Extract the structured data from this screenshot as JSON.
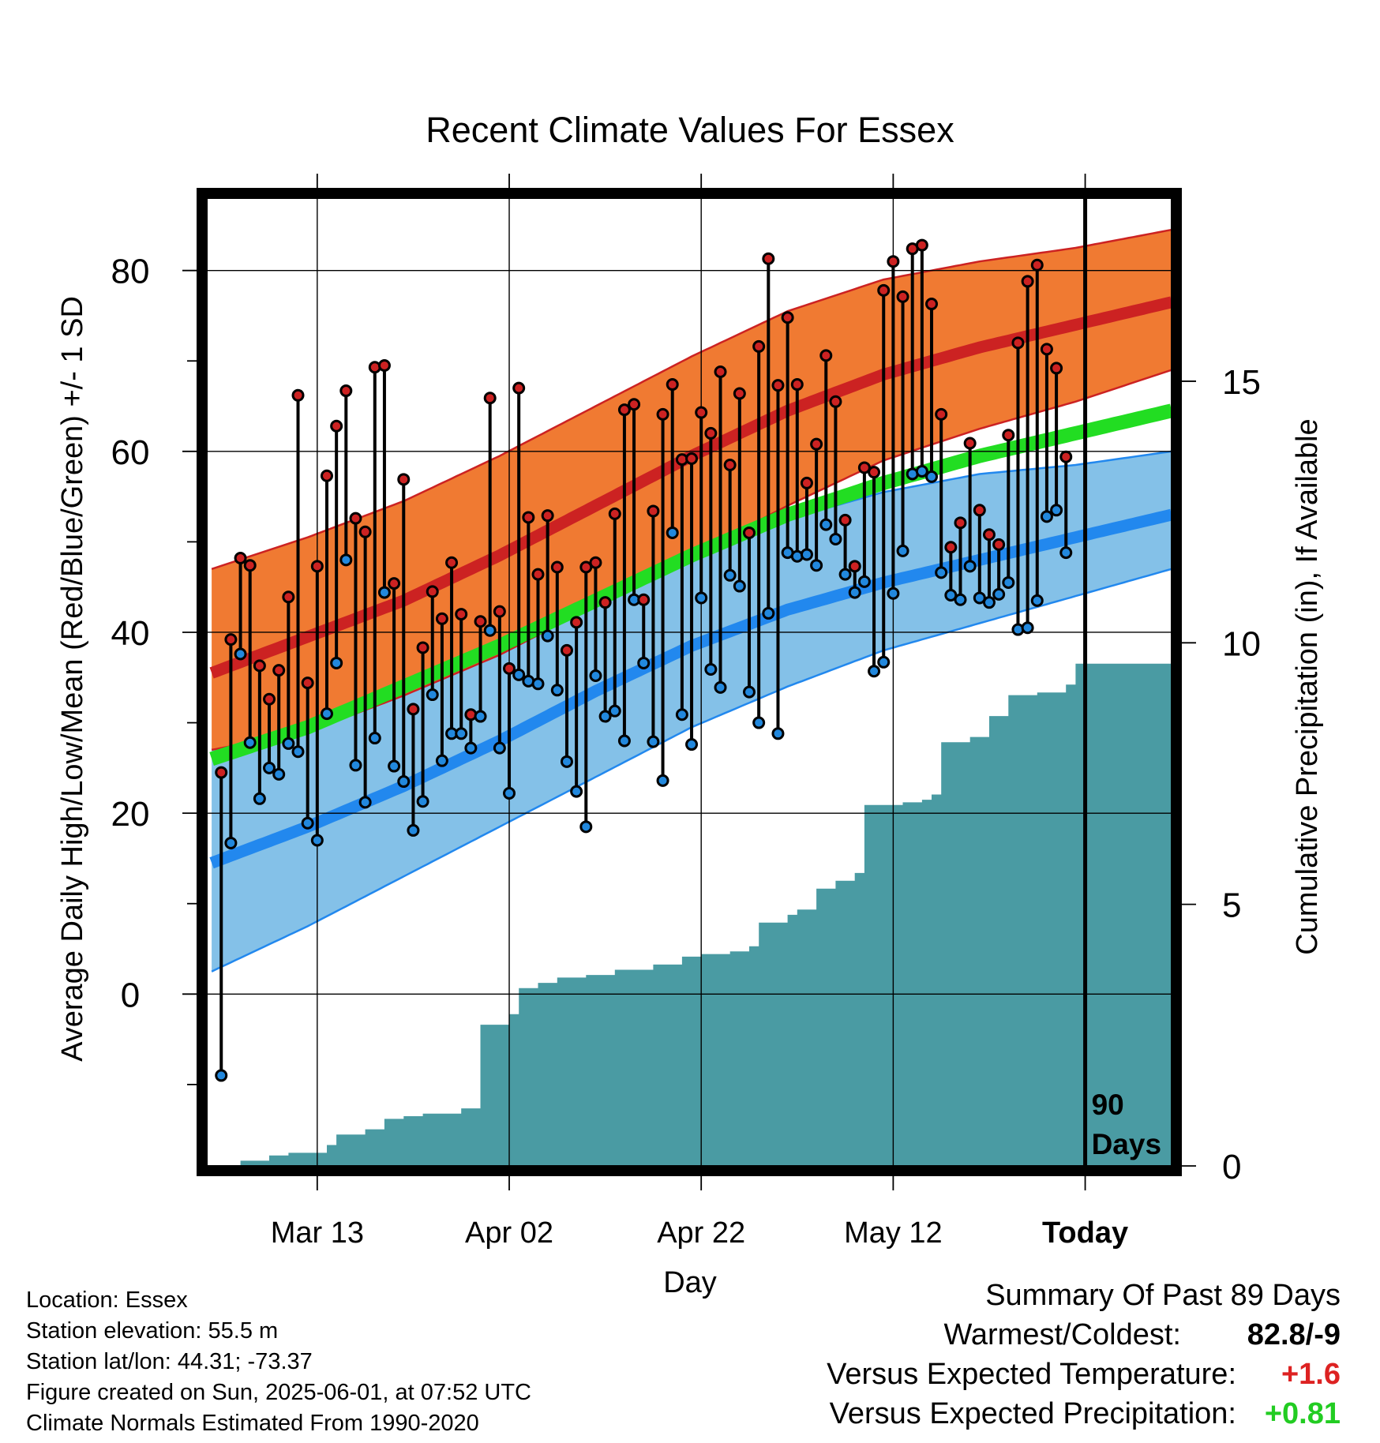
{
  "chart_data": {
    "type": "line",
    "title": "Recent Climate Values For Essex",
    "xlabel": "Day",
    "ylabel": "Average Daily High/Low/Mean (Red/Blue/Green) +/- 1 SD",
    "y2label": "Cumulative Precipitation (in), If Available",
    "x_tick_labels": [
      "Mar 13",
      "Apr 02",
      "Apr 22",
      "May 12",
      "Today"
    ],
    "x_tick_days": [
      10,
      30,
      50,
      70,
      90
    ],
    "xlim_days": [
      -1.5,
      99
    ],
    "ylim": [
      -19,
      88
    ],
    "y_ticks": [
      0,
      20,
      40,
      60,
      80
    ],
    "y2lim": [
      0,
      18.5
    ],
    "y2_ticks": [
      0,
      5,
      10,
      15
    ],
    "grid": true,
    "today_marker": {
      "label_line1": "90",
      "label_line2": "Days",
      "day": 90
    },
    "normals": {
      "days": [
        -1,
        9,
        19,
        29,
        39,
        49,
        59,
        69,
        79,
        89,
        99
      ],
      "high_mean": [
        35.5,
        39.5,
        43.5,
        48.5,
        54,
        59.5,
        64.5,
        68.5,
        71.5,
        74,
        76.5
      ],
      "high_upper": [
        47,
        50.5,
        54.5,
        59.5,
        65,
        70.5,
        75.5,
        79,
        81,
        82.5,
        84.5
      ],
      "high_lower": [
        27,
        29,
        33,
        37.5,
        43,
        48.5,
        54,
        59,
        62.5,
        65.5,
        69
      ],
      "low_mean": [
        14.5,
        18.5,
        23,
        28,
        33.5,
        38.5,
        42.5,
        45.5,
        48,
        50.5,
        53
      ],
      "low_upper": [
        27,
        29.5,
        33.5,
        38,
        43,
        48,
        52.5,
        55.5,
        57.5,
        58.5,
        60
      ],
      "low_lower": [
        2.5,
        7.5,
        13,
        18.5,
        24,
        29.5,
        34,
        38,
        41,
        44,
        47
      ],
      "daily_mean": [
        26,
        29.5,
        34,
        38.5,
        43.5,
        48.5,
        53,
        56.5,
        59.5,
        62,
        64.5
      ]
    },
    "series": [
      {
        "name": "High",
        "color": "#cc2222",
        "values": [
          24.5,
          39.2,
          48.2,
          47.4,
          36.3,
          32.6,
          35.8,
          43.9,
          66.2,
          34.4,
          47.3,
          57.3,
          62.8,
          66.7,
          52.6,
          51.1,
          69.3,
          69.5,
          45.4,
          56.9,
          31.5,
          38.3,
          44.5,
          41.5,
          47.7,
          42,
          30.9,
          41.2,
          65.9,
          42.3,
          36,
          67,
          52.7,
          46.4,
          52.9,
          47.2,
          38,
          41.1,
          47.2,
          47.7,
          43.3,
          53.1,
          64.6,
          65.2,
          43.6,
          53.4,
          64.1,
          67.4,
          59.1,
          59.2,
          64.3,
          62,
          68.8,
          58.5,
          66.4,
          51,
          71.6,
          81.3,
          67.3,
          74.8,
          67.4,
          56.5,
          60.8,
          70.6,
          65.5,
          52.4,
          47.3,
          58.2,
          57.7,
          77.8,
          81,
          77.1,
          82.4,
          82.8,
          76.3,
          64.1,
          49.4,
          52.1,
          60.9,
          53.5,
          50.8,
          49.7,
          61.8,
          72,
          78.8,
          80.6,
          71.3,
          69.2,
          59.4
        ]
      },
      {
        "name": "Low",
        "color": "#2288dd",
        "values": [
          -9,
          16.7,
          37.6,
          27.8,
          21.6,
          25,
          24.3,
          27.7,
          26.8,
          18.9,
          17,
          31,
          36.6,
          48,
          25.3,
          21.2,
          28.3,
          44.4,
          25.2,
          23.5,
          18.1,
          21.3,
          33.1,
          25.8,
          28.8,
          28.8,
          27.2,
          30.7,
          40.2,
          27.2,
          22.2,
          35.3,
          34.6,
          34.3,
          39.6,
          33.6,
          25.7,
          22.4,
          18.5,
          35.2,
          30.7,
          31.3,
          28,
          43.6,
          36.6,
          27.9,
          23.6,
          51,
          30.9,
          27.6,
          43.8,
          35.9,
          33.9,
          46.3,
          45.1,
          33.4,
          30,
          42.1,
          28.8,
          48.8,
          48.4,
          48.6,
          47.4,
          51.9,
          50.3,
          46.4,
          44.4,
          45.6,
          35.7,
          36.7,
          44.3,
          49,
          57.5,
          57.8,
          57.2,
          46.6,
          44.1,
          43.6,
          47.3,
          43.8,
          43.3,
          44.2,
          45.5,
          40.3,
          40.5,
          43.5,
          52.8,
          53.5,
          48.8
        ]
      }
    ],
    "precipitation": {
      "color": "#4a9ba3",
      "days": [
        -1,
        1,
        2,
        5,
        7,
        11,
        12,
        15,
        17,
        19,
        21,
        25,
        27,
        30,
        31,
        33,
        35,
        38,
        41,
        45,
        48,
        50,
        53,
        55,
        56,
        59,
        60,
        62,
        64,
        66,
        67,
        71,
        73,
        74,
        75,
        78,
        80,
        82,
        85,
        88,
        89,
        99
      ],
      "values": [
        0,
        0,
        0.1,
        0.2,
        0.25,
        0.4,
        0.6,
        0.7,
        0.9,
        0.95,
        1.0,
        1.1,
        2.7,
        2.9,
        3.4,
        3.5,
        3.6,
        3.65,
        3.75,
        3.85,
        4.0,
        4.05,
        4.1,
        4.2,
        4.65,
        4.8,
        4.9,
        5.3,
        5.45,
        5.6,
        6.9,
        6.95,
        7.0,
        7.1,
        8.1,
        8.2,
        8.6,
        9.0,
        9.05,
        9.2,
        9.6,
        9.6
      ]
    }
  },
  "info": {
    "location": "Location: Essex",
    "elevation": "Station elevation: 55.5 m",
    "latlon": "Station lat/lon: 44.31; -73.37",
    "created": "Figure created on Sun, 2025-06-01, at 07:52 UTC",
    "normals": "Climate Normals Estimated From 1990-2020"
  },
  "summary": {
    "title": "Summary Of Past 89 Days",
    "warmest_coldest_label": "Warmest/Coldest:",
    "warmest_coldest_value": "82.8/-9",
    "temp_label": "Versus Expected Temperature:",
    "temp_value": "+1.6",
    "temp_color": "#dd2222",
    "precip_label": "Versus Expected Precipitation:",
    "precip_value": "+0.81",
    "precip_color": "#22cc22"
  }
}
